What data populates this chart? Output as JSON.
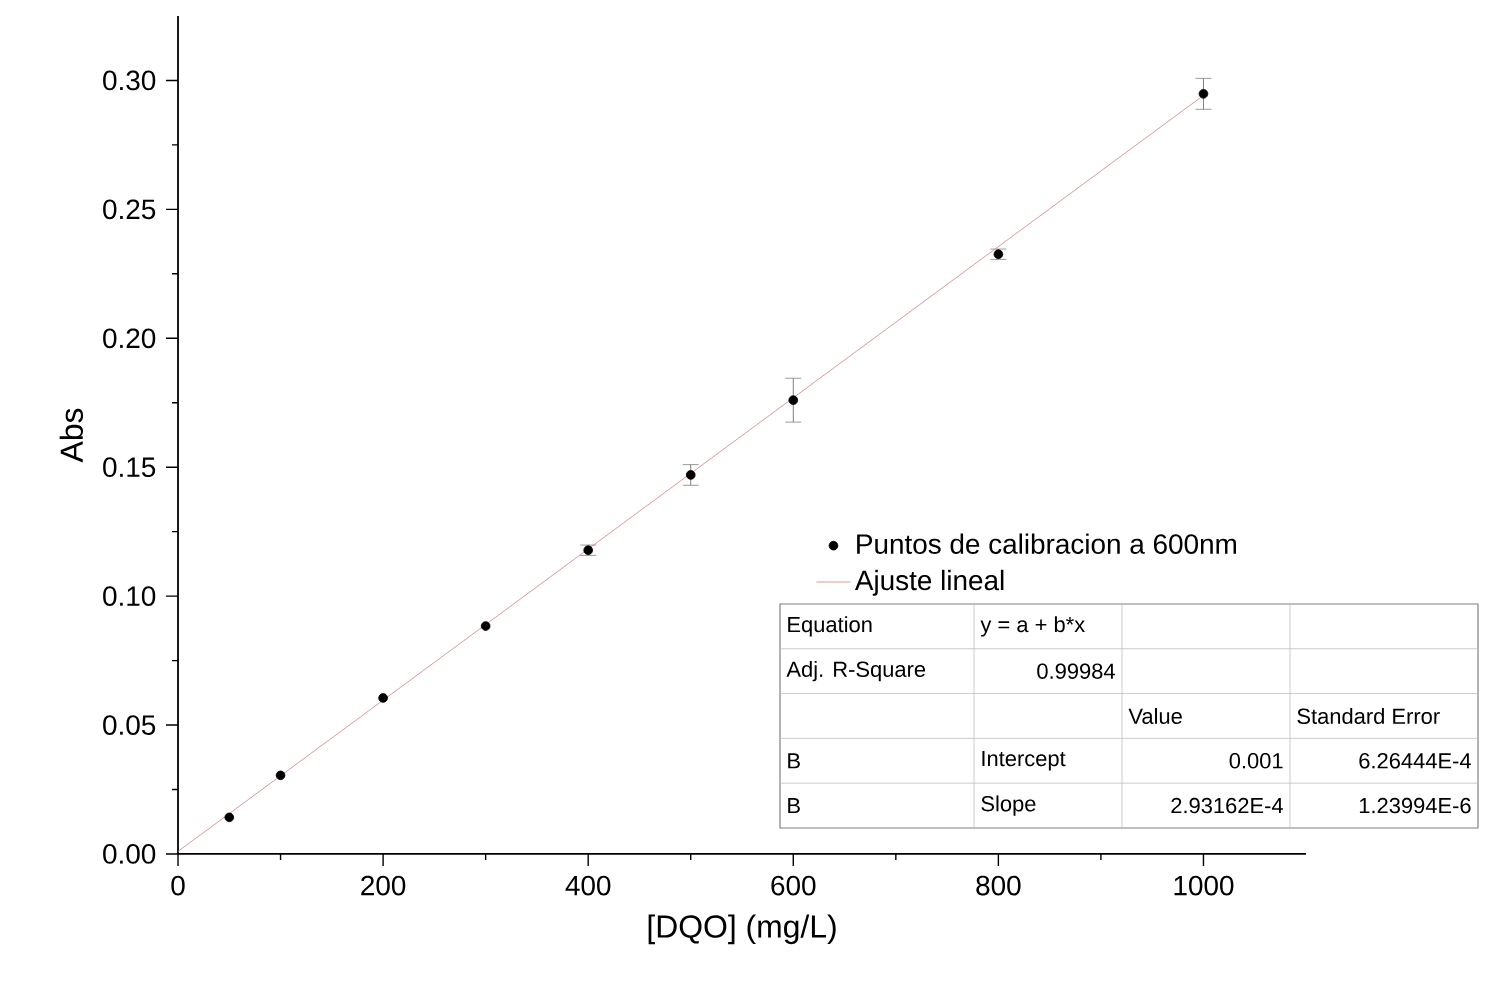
{
  "chart_data": {
    "type": "scatter",
    "xlabel": "[DQO] (mg/L)",
    "ylabel": "Abs",
    "xlim": [
      0,
      1100
    ],
    "ylim": [
      0,
      0.325
    ],
    "xticks": [
      0,
      200,
      400,
      600,
      800,
      1000
    ],
    "yticks": [
      {
        "value": 0,
        "label": "0.00"
      },
      {
        "value": 0.05,
        "label": "0.05"
      },
      {
        "value": 0.1,
        "label": "0.10"
      },
      {
        "value": 0.15,
        "label": "0.15"
      },
      {
        "value": 0.2,
        "label": "0.20"
      },
      {
        "value": 0.25,
        "label": "0.25"
      },
      {
        "value": 0.3,
        "label": "0.30"
      }
    ],
    "grid": false,
    "legend": "right",
    "series": [
      {
        "name": "Puntos de calibracion a 600nm",
        "marker": "circle",
        "color": "#000000",
        "x": [
          50,
          100,
          200,
          300,
          400,
          500,
          600,
          800,
          1000
        ],
        "values": [
          0.0142,
          0.0305,
          0.0605,
          0.0884,
          0.1178,
          0.147,
          0.176,
          0.2326,
          0.2948
        ],
        "errors": [
          null,
          null,
          null,
          null,
          0.002,
          0.004,
          0.0085,
          0.002,
          0.006
        ]
      },
      {
        "name": "Ajuste lineal",
        "type": "line",
        "marker": "none",
        "line_style": "solid",
        "color": "#d08080",
        "x": [
          0,
          1000
        ],
        "values": [
          0.001,
          0.2942
        ]
      }
    ],
    "annotations": [
      "Equation",
      "y = a + b*x",
      "Adj. R-Square",
      "0.99984",
      "Value",
      "Standard Error",
      "B",
      "Intercept",
      "0.001",
      "6.26444E-4",
      "B",
      "Slope",
      "2.93162E-4",
      "1.23994E-6"
    ]
  }
}
